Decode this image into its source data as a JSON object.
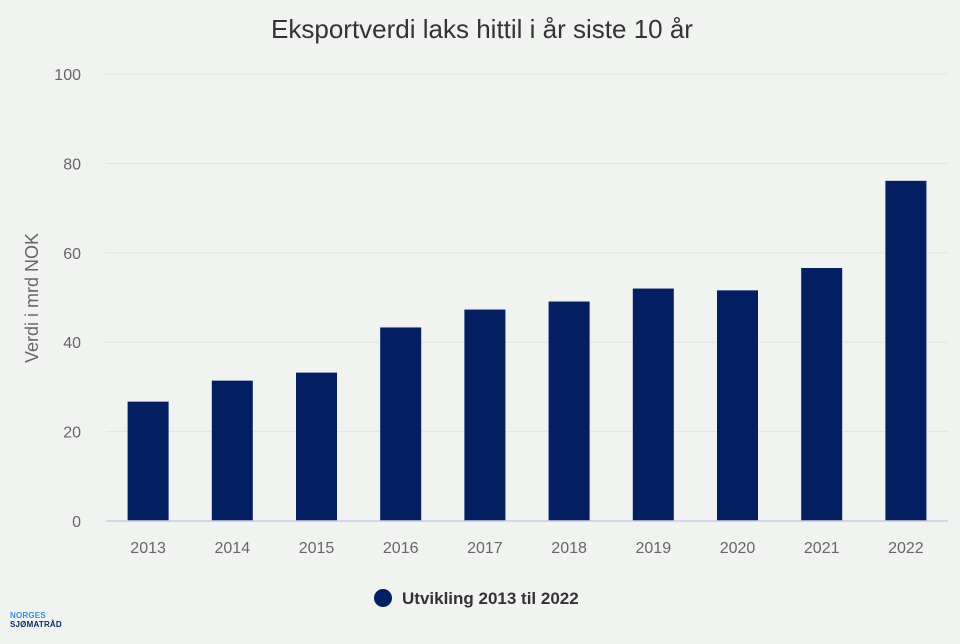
{
  "colors": {
    "background": "#f1f3f1",
    "bar": "#041e62",
    "grid": "#e2e4e2",
    "axis_line": "#c8cde8"
  },
  "logo": {
    "line1": "NORGES",
    "line2": "SJØMATRÅD"
  },
  "chart_data": {
    "type": "bar",
    "title": "Eksportverdi laks hittil i år siste 10 år",
    "xlabel": "",
    "ylabel": "Verdi i mrd NOK",
    "ylim": [
      0,
      100
    ],
    "yticks": [
      0,
      20,
      40,
      60,
      80,
      100
    ],
    "grid": true,
    "legend_placement": "bottom",
    "categories": [
      "2013",
      "2014",
      "2015",
      "2016",
      "2017",
      "2018",
      "2019",
      "2020",
      "2021",
      "2022"
    ],
    "series": [
      {
        "name": "Utvikling 2013 til 2022",
        "color": "#041e62",
        "values": [
          26.7,
          31.4,
          33.2,
          43.3,
          47.3,
          49.1,
          52.0,
          51.6,
          56.6,
          76.1
        ]
      }
    ]
  }
}
